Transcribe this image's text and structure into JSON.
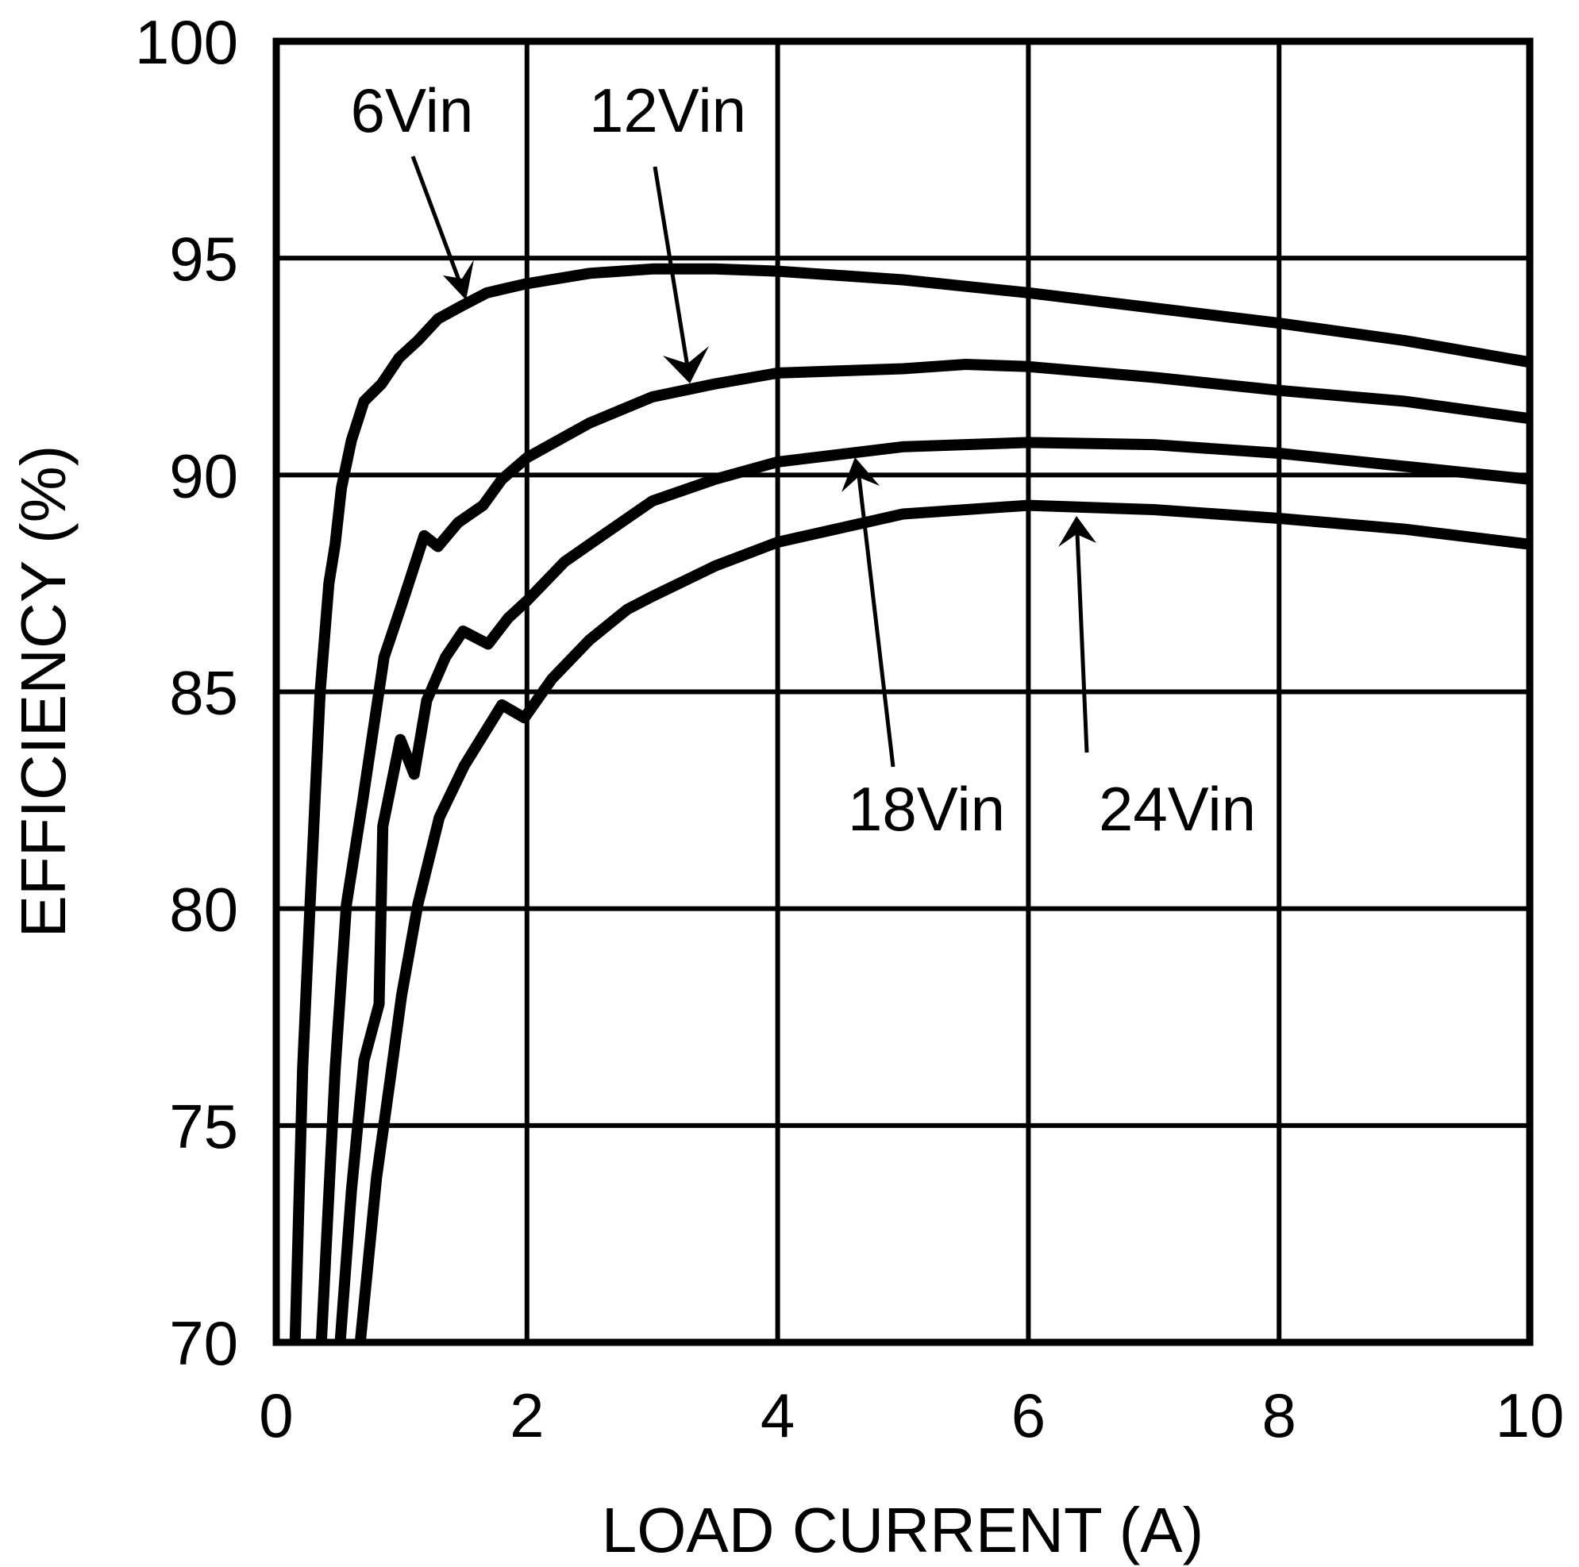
{
  "chart_data": {
    "type": "line",
    "title": "",
    "xlabel": "LOAD CURRENT (A)",
    "ylabel": "EFFICIENCY (%)",
    "xlim": [
      0,
      10
    ],
    "ylim": [
      70,
      100
    ],
    "x_ticks": [
      "0",
      "2",
      "4",
      "6",
      "8",
      "10"
    ],
    "y_ticks": [
      "70",
      "75",
      "80",
      "85",
      "90",
      "95",
      "100"
    ],
    "grid": true,
    "legend": "inline arrow annotations",
    "series": [
      {
        "name": "6Vin",
        "x": [
          0.15,
          0.21,
          0.27,
          0.35,
          0.42,
          0.47,
          0.52,
          0.6,
          0.7,
          0.84,
          0.98,
          1.13,
          1.29,
          1.48,
          1.68,
          1.98,
          2.5,
          3.0,
          3.5,
          4.0,
          5.0,
          6.0,
          7.0,
          8.0,
          9.0,
          10.0
        ],
        "y": [
          70.0,
          76.3,
          80.1,
          85.0,
          87.5,
          88.4,
          89.7,
          90.8,
          91.7,
          92.1,
          92.7,
          93.1,
          93.6,
          93.9,
          94.2,
          94.4,
          94.65,
          94.75,
          94.75,
          94.7,
          94.5,
          94.2,
          93.85,
          93.5,
          93.1,
          92.6
        ]
      },
      {
        "name": "12Vin",
        "x": [
          0.36,
          0.47,
          0.56,
          0.69,
          0.86,
          1.0,
          1.18,
          1.29,
          1.45,
          1.65,
          1.8,
          2.0,
          2.5,
          3.0,
          3.5,
          4.0,
          5.0,
          5.5,
          6.0,
          7.0,
          8.0,
          9.0,
          10.0
        ],
        "y": [
          70.0,
          76.3,
          80.1,
          82.5,
          85.8,
          87.0,
          88.6,
          88.35,
          88.9,
          89.3,
          89.9,
          90.4,
          91.2,
          91.8,
          92.1,
          92.35,
          92.45,
          92.55,
          92.5,
          92.25,
          91.95,
          91.7,
          91.3
        ]
      },
      {
        "name": "18Vin",
        "x": [
          0.51,
          0.6,
          0.7,
          0.82,
          0.85,
          0.99,
          1.1,
          1.2,
          1.35,
          1.49,
          1.69,
          1.85,
          2.0,
          2.3,
          2.6,
          3.0,
          3.5,
          4.0,
          5.0,
          6.0,
          7.0,
          8.0,
          9.0,
          10.0
        ],
        "y": [
          70.0,
          73.5,
          76.5,
          77.8,
          81.9,
          83.9,
          83.1,
          84.8,
          85.8,
          86.4,
          86.1,
          86.7,
          87.1,
          88.0,
          88.6,
          89.4,
          89.9,
          90.3,
          90.65,
          90.75,
          90.7,
          90.5,
          90.2,
          89.9
        ]
      },
      {
        "name": "24Vin",
        "x": [
          0.67,
          0.8,
          0.92,
          1.0,
          1.13,
          1.3,
          1.5,
          1.8,
          1.98,
          2.2,
          2.5,
          2.8,
          3.0,
          3.5,
          4.0,
          5.0,
          6.0,
          7.0,
          8.0,
          9.0,
          10.0
        ],
        "y": [
          70.0,
          73.8,
          76.3,
          78.0,
          80.1,
          82.1,
          83.3,
          84.7,
          84.4,
          85.3,
          86.2,
          86.9,
          87.2,
          87.9,
          88.45,
          89.1,
          89.3,
          89.2,
          89.0,
          88.75,
          88.4
        ]
      }
    ],
    "annotations": [
      {
        "text": "6Vin",
        "points_to": "6Vin curve near 1.5 A"
      },
      {
        "text": "12Vin",
        "points_to": "12Vin curve near 3.3 A"
      },
      {
        "text": "18Vin",
        "points_to": "18Vin curve near 4.8 A"
      },
      {
        "text": "24Vin",
        "points_to": "24Vin curve near 7 A"
      }
    ]
  },
  "labels": {
    "x_axis_title": "LOAD CURRENT (A)",
    "y_axis_title": "EFFICIENCY (%)",
    "series_6": "6Vin",
    "series_12": "12Vin",
    "series_18": "18Vin",
    "series_24": "24Vin"
  }
}
